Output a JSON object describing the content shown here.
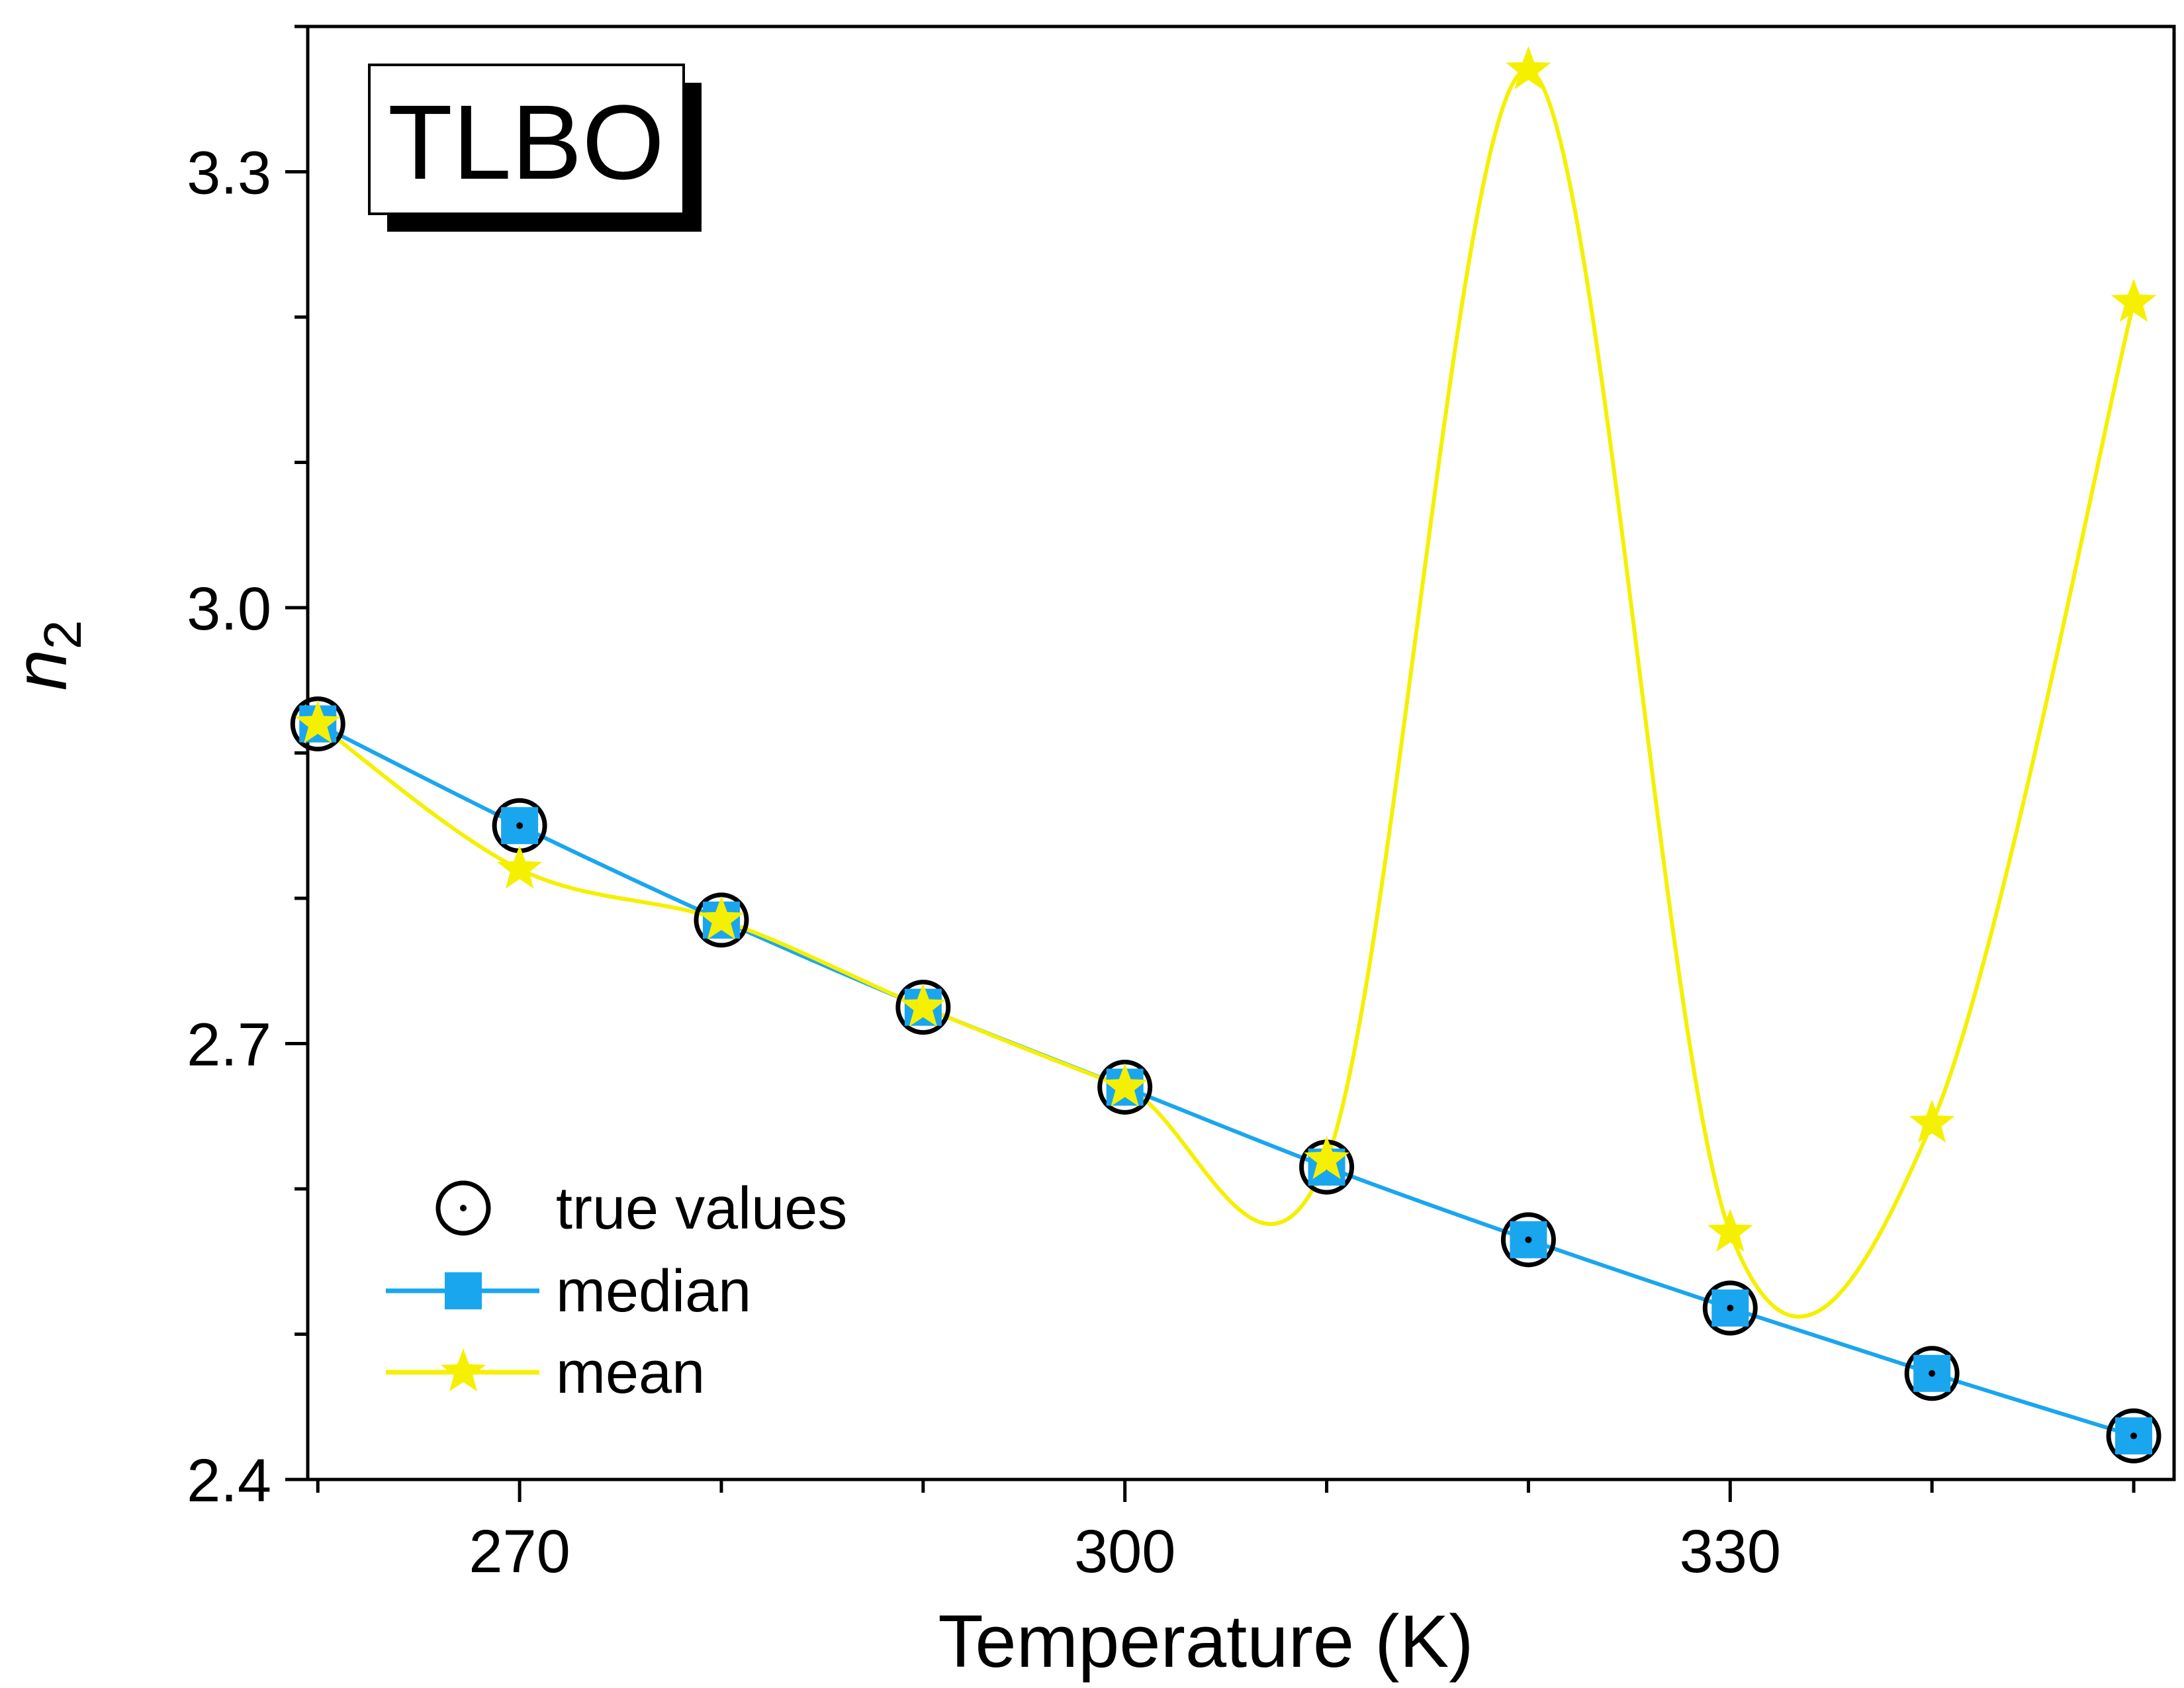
{
  "chart_data": {
    "type": "line",
    "title": "",
    "xlabel": "Temperature (K)",
    "ylabel_main": "n",
    "ylabel_sub": "2",
    "xlim": [
      259.5,
      352
    ],
    "ylim": [
      2.4,
      3.4
    ],
    "xticks": [
      270,
      300,
      330
    ],
    "xtick_labels": [
      "270",
      "300",
      "330"
    ],
    "yticks": [
      2.4,
      2.7,
      3.0,
      3.3
    ],
    "ytick_labels": [
      "2.4",
      "2.7",
      "3.0",
      "3.3"
    ],
    "x_minor_step": 10,
    "y_minor_step": 0.1,
    "grid": false,
    "legend_position": "bottom-left",
    "annotation": "TLBO",
    "x": [
      260,
      270,
      280,
      290,
      300,
      310,
      320,
      330,
      340,
      350
    ],
    "series": [
      {
        "name": "true values",
        "marker": "circle-dot",
        "line": false,
        "color": "#000000",
        "values": [
          2.92,
          2.85,
          2.785,
          2.725,
          2.67,
          2.615,
          2.565,
          2.518,
          2.473,
          2.43
        ]
      },
      {
        "name": "median",
        "marker": "square",
        "line": true,
        "color": "#1aa6ef",
        "values": [
          2.92,
          2.85,
          2.785,
          2.725,
          2.67,
          2.615,
          2.565,
          2.518,
          2.473,
          2.43
        ]
      },
      {
        "name": "mean",
        "marker": "star",
        "line": true,
        "color": "#f5f000",
        "values": [
          2.92,
          2.82,
          2.785,
          2.725,
          2.67,
          2.62,
          3.37,
          2.57,
          2.645,
          3.21
        ]
      }
    ]
  }
}
